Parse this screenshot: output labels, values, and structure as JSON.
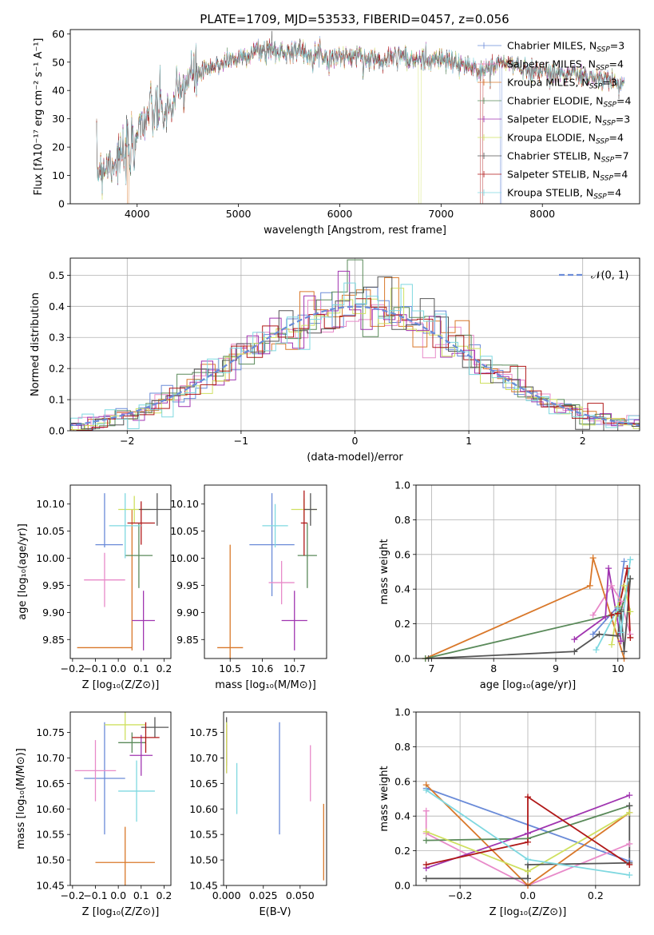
{
  "figure_title": "PLATE=1709, MJD=53533, FIBERID=0457, z=0.056",
  "chart_data": [
    {
      "id": "spectrum",
      "type": "line",
      "title": "PLATE=1709, MJD=53533, FIBERID=0457, z=0.056",
      "xlabel": "wavelength [Angstrom, rest frame]",
      "ylabel": "Flux [fλ10⁻¹⁷ erg cm⁻² s⁻¹ A⁻¹]",
      "xlim": [
        3340,
        8960
      ],
      "ylim": [
        0,
        61.5
      ],
      "xticks": [
        4000,
        5000,
        6000,
        7000,
        8000
      ],
      "yticks": [
        0,
        10,
        20,
        30,
        40,
        50,
        60
      ],
      "legend_position": "upper-right",
      "continuum": {
        "x": [
          3600,
          3700,
          3800,
          3900,
          3950,
          4000,
          4100,
          4200,
          4300,
          4400,
          4500,
          4600,
          4700,
          4800,
          4900,
          5000,
          5100,
          5200,
          5300,
          5400,
          5500,
          5600,
          5700,
          5800,
          5900,
          6000,
          6100,
          6200,
          6300,
          6400,
          6500,
          6600,
          6700,
          6800,
          6900,
          7000,
          7100,
          7200,
          7300,
          7400,
          7500,
          7600,
          7700,
          7800,
          7900,
          8000,
          8100,
          8200,
          8300,
          8400,
          8500,
          8600,
          8700,
          8800
        ],
        "y": [
          12,
          14,
          16,
          17,
          24,
          27,
          31,
          33,
          32,
          38,
          44,
          46,
          47,
          49,
          51,
          51,
          53,
          54,
          55,
          53,
          54,
          54,
          53,
          53,
          52,
          52,
          52,
          52,
          51,
          51,
          52,
          53,
          50,
          51,
          51,
          51,
          50,
          49,
          48,
          47,
          48,
          50,
          49,
          48,
          47,
          47,
          46,
          46,
          46,
          45,
          44,
          44,
          43,
          42
        ]
      },
      "series": [
        {
          "name": "Chabrier MILES, N_SSP=3",
          "color": "#6a8bd8"
        },
        {
          "name": "Salpeter MILES, N_SSP=4",
          "color": "#e88ac9"
        },
        {
          "name": "Kroupa MILES, N_SSP=3",
          "color": "#d9782a"
        },
        {
          "name": "Chabrier ELODIE, N_SSP=4",
          "color": "#5a8a5a"
        },
        {
          "name": "Salpeter ELODIE, N_SSP=3",
          "color": "#a035b0"
        },
        {
          "name": "Kroupa ELODIE, N_SSP=4",
          "color": "#cfe060"
        },
        {
          "name": "Chabrier STELIB, N_SSP=7",
          "color": "#555555"
        },
        {
          "name": "Salpeter STELIB, N_SSP=4",
          "color": "#b01818"
        },
        {
          "name": "Kroupa STELIB, N_SSP=4",
          "color": "#7fd8e0"
        }
      ]
    },
    {
      "id": "residuals",
      "type": "line",
      "xlabel": "(data-model)/error",
      "ylabel": "Normed distribution",
      "xlim": [
        -2.5,
        2.5
      ],
      "ylim": [
        0,
        0.555
      ],
      "xticks": [
        -2,
        -1,
        0,
        1,
        2
      ],
      "yticks": [
        0.0,
        0.1,
        0.2,
        0.3,
        0.4,
        0.5
      ],
      "grid": true,
      "legend": {
        "label": "𝒩(0, 1)",
        "position": "upper-right"
      },
      "gaussian": {
        "mean": 0,
        "sigma": 1,
        "color": "#6a8bd8"
      }
    },
    {
      "id": "age_vs_Z",
      "type": "scatter",
      "xlabel": "Z [log₁₀(Z/Z⊙)]",
      "ylabel": "age  [log₁₀(age/yr)]",
      "xlim": [
        -0.21,
        0.23
      ],
      "ylim": [
        9.815,
        10.135
      ],
      "xticks": [
        -0.2,
        -0.1,
        0.0,
        0.1,
        0.2
      ],
      "yticks": [
        9.85,
        9.9,
        9.95,
        10.0,
        10.05,
        10.1
      ],
      "points": [
        {
          "x": -0.06,
          "y": 10.07,
          "xerr": 0,
          "yerr": 0.05,
          "color": "#6a8bd8"
        },
        {
          "x": -0.04,
          "y": 10.025,
          "xerr": 0.06,
          "yerr": 0,
          "color": "#6a8bd8"
        },
        {
          "x": -0.06,
          "y": 9.96,
          "xerr": 0.09,
          "yerr": 0.05,
          "color": "#e88ac9"
        },
        {
          "x": 0.06,
          "y": 9.96,
          "xerr": 0,
          "yerr": 0.13,
          "color": "#d9782a"
        },
        {
          "x": -0.06,
          "y": 9.835,
          "xerr": 0.12,
          "yerr": 0,
          "color": "#d9782a"
        },
        {
          "x": 0.09,
          "y": 10.005,
          "xerr": 0.06,
          "yerr": 0.06,
          "color": "#5a8a5a"
        },
        {
          "x": 0.11,
          "y": 9.885,
          "xerr": 0.05,
          "yerr": 0.055,
          "color": "#a035b0"
        },
        {
          "x": 0.07,
          "y": 10.09,
          "xerr": 0.07,
          "yerr": 0.025,
          "color": "#cfe060"
        },
        {
          "x": 0.17,
          "y": 10.09,
          "xerr": 0.08,
          "yerr": 0.03,
          "color": "#555555"
        },
        {
          "x": 0.1,
          "y": 10.065,
          "xerr": 0.06,
          "yerr": 0.04,
          "color": "#b01818"
        },
        {
          "x": 0.03,
          "y": 10.06,
          "xerr": 0.07,
          "yerr": 0.06,
          "color": "#7fd8e0"
        }
      ]
    },
    {
      "id": "age_vs_mass",
      "type": "scatter",
      "xlabel": "mass [log₁₀(M/M⊙)]",
      "ylabel": "",
      "xlim": [
        10.42,
        10.8
      ],
      "ylim": [
        9.815,
        10.135
      ],
      "xticks": [
        10.5,
        10.6,
        10.7
      ],
      "yticks": [
        9.85,
        9.9,
        9.95,
        10.0,
        10.05,
        10.1
      ],
      "points": [
        {
          "x": 10.63,
          "y": 10.025,
          "xerr": 0.07,
          "yerr": 0.095,
          "color": "#6a8bd8"
        },
        {
          "x": 10.66,
          "y": 9.955,
          "xerr": 0.04,
          "yerr": 0.04,
          "color": "#e88ac9"
        },
        {
          "x": 10.5,
          "y": 9.835,
          "xerr": 0.04,
          "yerr": 0.19,
          "color": "#d9782a"
        },
        {
          "x": 10.74,
          "y": 10.005,
          "xerr": 0.03,
          "yerr": 0.06,
          "color": "#5a8a5a"
        },
        {
          "x": 10.7,
          "y": 9.885,
          "xerr": 0.04,
          "yerr": 0.055,
          "color": "#a035b0"
        },
        {
          "x": 10.73,
          "y": 10.09,
          "xerr": 0.04,
          "yerr": 0.02,
          "color": "#cfe060"
        },
        {
          "x": 10.75,
          "y": 10.09,
          "xerr": 0.02,
          "yerr": 0.03,
          "color": "#555555"
        },
        {
          "x": 10.73,
          "y": 10.065,
          "xerr": 0.01,
          "yerr": 0.06,
          "color": "#b01818"
        },
        {
          "x": 10.64,
          "y": 10.06,
          "xerr": 0.04,
          "yerr": 0.04,
          "color": "#7fd8e0"
        }
      ]
    },
    {
      "id": "weight_vs_age",
      "type": "line",
      "xlabel": "age  [log₁₀(age/yr)]",
      "ylabel": "mass weight",
      "xlim": [
        6.75,
        10.35
      ],
      "ylim": [
        0,
        1.0
      ],
      "xticks": [
        7,
        8,
        9,
        10
      ],
      "yticks": [
        0.0,
        0.2,
        0.4,
        0.6,
        0.8,
        1.0
      ],
      "grid": true,
      "series": [
        {
          "color": "#6a8bd8",
          "x": [
            9.6,
            10.0,
            10.1
          ],
          "y": [
            0.14,
            0.3,
            0.56
          ]
        },
        {
          "color": "#e88ac9",
          "x": [
            9.6,
            9.9,
            10.05,
            10.2
          ],
          "y": [
            0.25,
            0.42,
            0.33,
            0.14
          ]
        },
        {
          "color": "#d9782a",
          "x": [
            6.9,
            9.55,
            9.6,
            10.1
          ],
          "y": [
            0.0,
            0.42,
            0.58,
            0.0
          ]
        },
        {
          "color": "#5a8a5a",
          "x": [
            6.9,
            10.0,
            10.05,
            10.2
          ],
          "y": [
            0.0,
            0.26,
            0.28,
            0.46
          ]
        },
        {
          "color": "#a035b0",
          "x": [
            9.3,
            9.8,
            9.85,
            10.05
          ],
          "y": [
            0.11,
            0.24,
            0.52,
            0.1
          ]
        },
        {
          "color": "#cfe060",
          "x": [
            9.9,
            10.0,
            10.1,
            10.2
          ],
          "y": [
            0.08,
            0.3,
            0.42,
            0.27
          ]
        },
        {
          "color": "#555555",
          "x": [
            6.95,
            9.3,
            9.7,
            10.0,
            10.05,
            10.1,
            10.2
          ],
          "y": [
            0.0,
            0.04,
            0.14,
            0.13,
            0.27,
            0.04,
            0.46
          ]
        },
        {
          "color": "#b01818",
          "x": [
            9.9,
            10.0,
            10.15,
            10.2
          ],
          "y": [
            0.25,
            0.26,
            0.52,
            0.12
          ]
        },
        {
          "color": "#7fd8e0",
          "x": [
            9.65,
            10.0,
            10.05,
            10.2
          ],
          "y": [
            0.05,
            0.29,
            0.15,
            0.57
          ]
        }
      ]
    },
    {
      "id": "mass_vs_Z",
      "type": "scatter",
      "xlabel": "Z [log₁₀(Z/Z⊙)]",
      "ylabel": "mass [log₁₀(M/M⊙)]",
      "xlim": [
        -0.21,
        0.23
      ],
      "ylim": [
        10.45,
        10.79
      ],
      "xticks": [
        -0.2,
        -0.1,
        0.0,
        0.1,
        0.2
      ],
      "yticks": [
        10.45,
        10.5,
        10.55,
        10.6,
        10.65,
        10.7,
        10.75
      ],
      "points": [
        {
          "x": -0.06,
          "y": 10.66,
          "xerr": 0.09,
          "yerr": 0.11,
          "color": "#6a8bd8"
        },
        {
          "x": -0.1,
          "y": 10.675,
          "xerr": 0.09,
          "yerr": 0.06,
          "color": "#e88ac9"
        },
        {
          "x": 0.03,
          "y": 10.495,
          "xerr": 0.13,
          "yerr": 0.07,
          "color": "#d9782a"
        },
        {
          "x": 0.06,
          "y": 10.73,
          "xerr": 0.06,
          "yerr": 0.02,
          "color": "#5a8a5a"
        },
        {
          "x": 0.1,
          "y": 10.705,
          "xerr": 0.05,
          "yerr": 0.04,
          "color": "#a035b0"
        },
        {
          "x": 0.03,
          "y": 10.765,
          "xerr": 0.09,
          "yerr": 0.03,
          "color": "#cfe060"
        },
        {
          "x": 0.16,
          "y": 10.76,
          "xerr": 0.06,
          "yerr": 0.02,
          "color": "#555555"
        },
        {
          "x": 0.12,
          "y": 10.74,
          "xerr": 0.06,
          "yerr": 0.03,
          "color": "#b01818"
        },
        {
          "x": 0.08,
          "y": 10.635,
          "xerr": 0.08,
          "yerr": 0.06,
          "color": "#7fd8e0"
        }
      ]
    },
    {
      "id": "mass_vs_ebv",
      "type": "scatter",
      "xlabel": "E(B-V)",
      "ylabel": "",
      "xlim": [
        -0.002,
        0.068
      ],
      "ylim": [
        10.45,
        10.79
      ],
      "xticks": [
        0.0,
        0.025,
        0.05
      ],
      "yticks": [
        10.45,
        10.5,
        10.55,
        10.6,
        10.65,
        10.7,
        10.75
      ],
      "points": [
        {
          "x": 0.036,
          "y": 10.66,
          "xerr": 0,
          "yerr": 0.11,
          "color": "#6a8bd8"
        },
        {
          "x": 0.057,
          "y": 10.67,
          "xerr": 0,
          "yerr": 0.055,
          "color": "#e88ac9"
        },
        {
          "x": 0.066,
          "y": 10.535,
          "xerr": 0,
          "yerr": 0.075,
          "color": "#d9782a"
        },
        {
          "x": 0.0,
          "y": 10.735,
          "xerr": 0,
          "yerr": 0.045,
          "color": "#555555"
        },
        {
          "x": 0.0,
          "y": 10.725,
          "xerr": 0,
          "yerr": 0.04,
          "color": "#b01818"
        },
        {
          "x": 0.0,
          "y": 10.7,
          "xerr": 0,
          "yerr": 0.03,
          "color": "#a035b0"
        },
        {
          "x": 0.0,
          "y": 10.72,
          "xerr": 0,
          "yerr": 0.05,
          "color": "#cfe060"
        },
        {
          "x": 0.007,
          "y": 10.64,
          "xerr": 0,
          "yerr": 0.05,
          "color": "#7fd8e0"
        }
      ]
    },
    {
      "id": "weight_vs_Z",
      "type": "line",
      "xlabel": "Z [log₁₀(Z/Z⊙)]",
      "ylabel": "mass weight",
      "xlim": [
        -0.33,
        0.33
      ],
      "ylim": [
        0,
        1.0
      ],
      "xticks": [
        -0.2,
        0.0,
        0.2
      ],
      "yticks": [
        0.0,
        0.2,
        0.4,
        0.6,
        0.8,
        1.0
      ],
      "grid": true,
      "series": [
        {
          "color": "#6a8bd8",
          "x": [
            -0.3,
            0.3
          ],
          "y": [
            0.56,
            0.14
          ]
        },
        {
          "color": "#e88ac9",
          "x": [
            -0.3,
            -0.3,
            0.0,
            0.3
          ],
          "y": [
            0.43,
            0.3,
            0.0,
            0.24
          ]
        },
        {
          "color": "#d9782a",
          "x": [
            -0.3,
            0.0,
            0.3
          ],
          "y": [
            0.58,
            0.0,
            0.42
          ]
        },
        {
          "color": "#5a8a5a",
          "x": [
            -0.3,
            0.0,
            0.3
          ],
          "y": [
            0.26,
            0.27,
            0.46
          ]
        },
        {
          "color": "#a035b0",
          "x": [
            -0.3,
            0.0,
            0.3
          ],
          "y": [
            0.1,
            0.3,
            0.52
          ]
        },
        {
          "color": "#cfe060",
          "x": [
            -0.3,
            0.0,
            0.3
          ],
          "y": [
            0.31,
            0.08,
            0.42
          ]
        },
        {
          "color": "#555555",
          "x": [
            -0.3,
            0.0,
            0.0,
            0.3,
            0.3
          ],
          "y": [
            0.04,
            0.04,
            0.12,
            0.13,
            0.46
          ]
        },
        {
          "color": "#b01818",
          "x": [
            -0.3,
            0.0,
            0.0,
            0.3
          ],
          "y": [
            0.12,
            0.25,
            0.51,
            0.12
          ]
        },
        {
          "color": "#7fd8e0",
          "x": [
            -0.3,
            0.0,
            0.3
          ],
          "y": [
            0.55,
            0.15,
            0.06
          ]
        }
      ]
    }
  ]
}
